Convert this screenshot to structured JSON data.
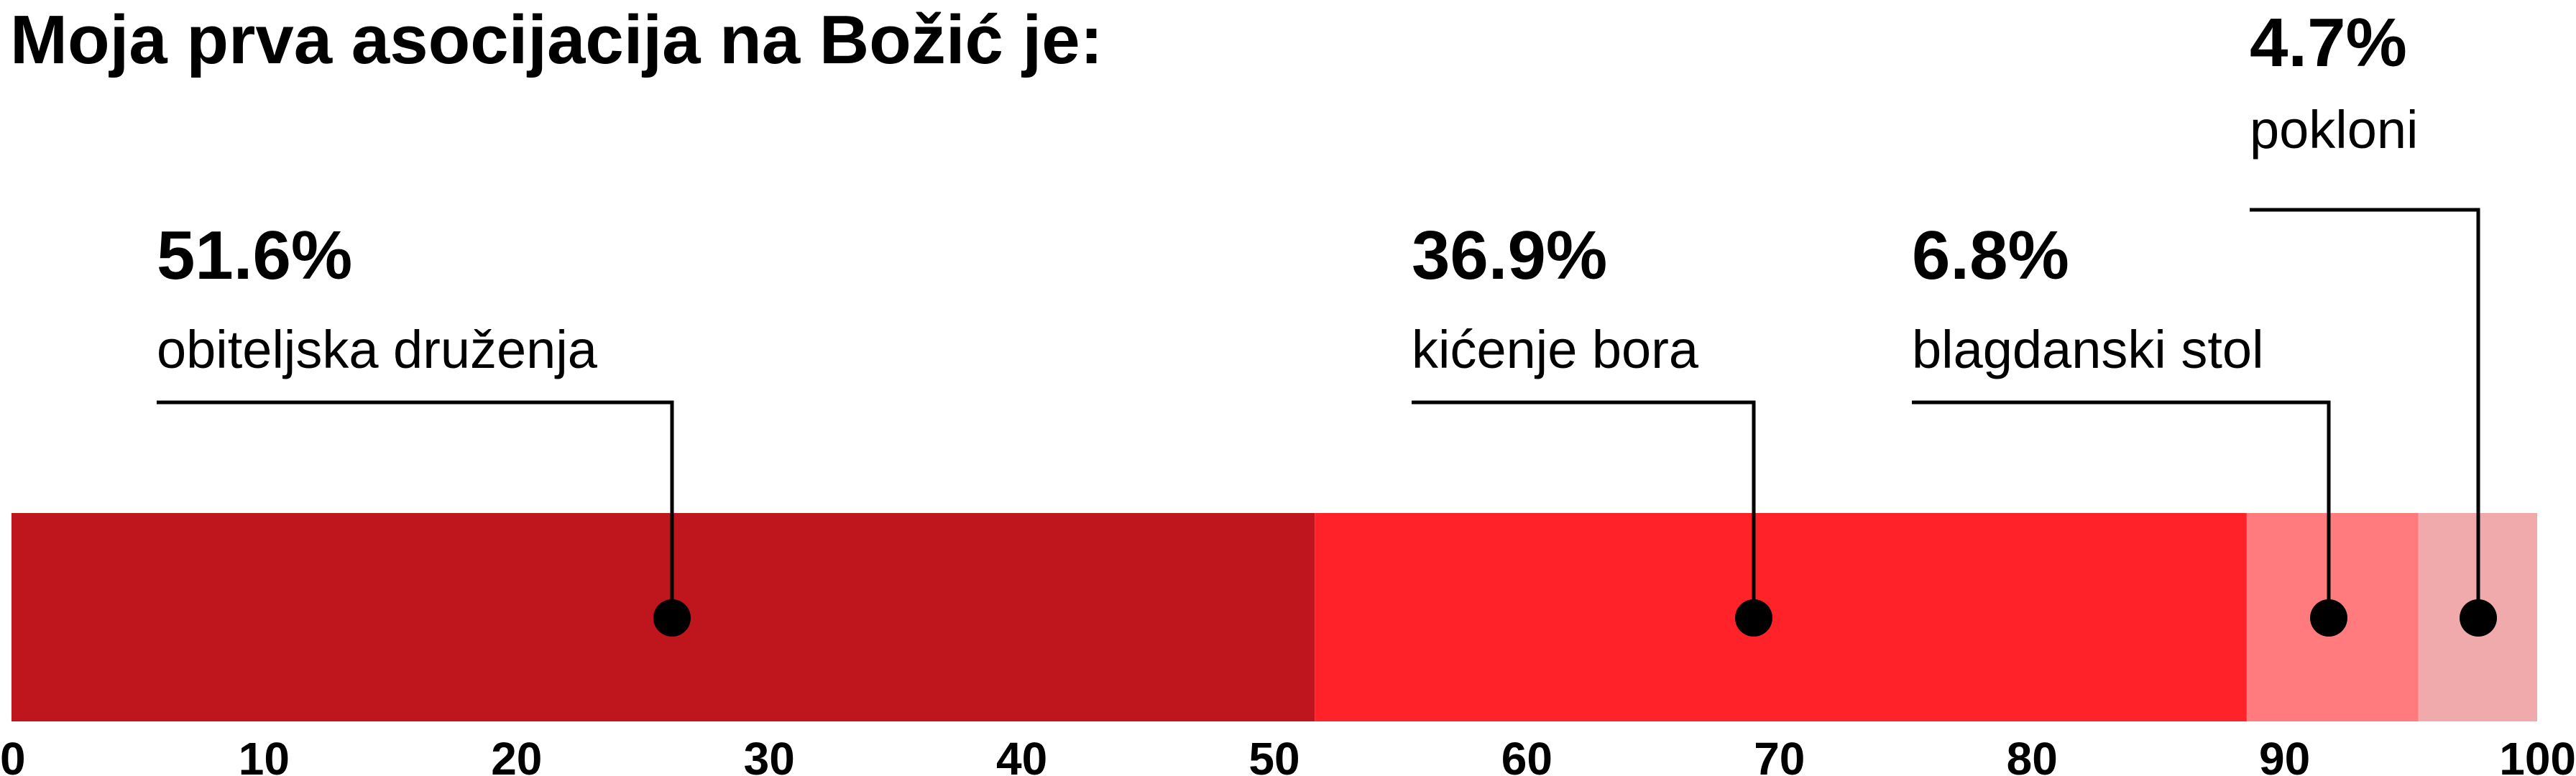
{
  "chart_data": {
    "type": "bar",
    "orientation": "horizontal",
    "stacked": true,
    "title": "Moja prva asocijacija na Božić je:",
    "xlim": [
      0,
      100
    ],
    "xticks": [
      "0",
      "10",
      "20",
      "30",
      "40",
      "50",
      "60",
      "70",
      "80",
      "90",
      "100"
    ],
    "grid": false,
    "segments": [
      {
        "label": "obiteljska druženja",
        "value": 51.6,
        "value_label": "51.6%",
        "color": "#bf161e"
      },
      {
        "label": "kićenje bora",
        "value": 36.9,
        "value_label": "36.9%",
        "color": "#ff2329"
      },
      {
        "label": "blagdanski stol",
        "value": 6.8,
        "value_label": "6.8%",
        "color": "#ff7b7d"
      },
      {
        "label": "pokloni",
        "value": 4.7,
        "value_label": "4.7%",
        "color": "#f1aaac"
      }
    ]
  }
}
